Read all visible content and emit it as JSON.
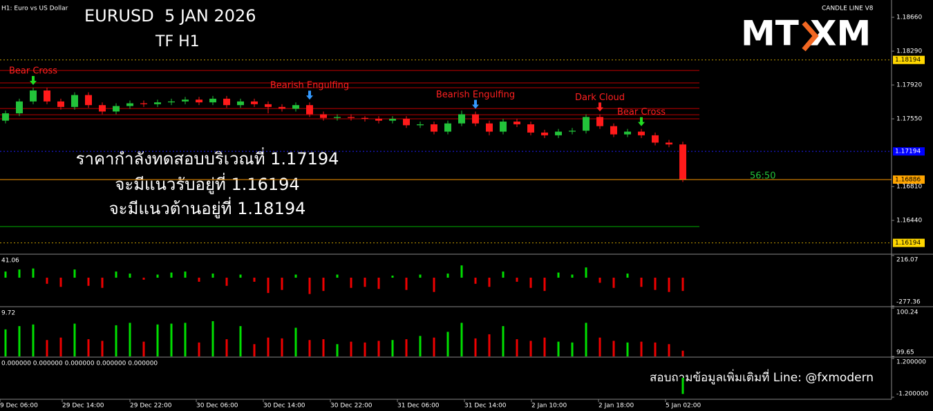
{
  "header": {
    "symbol": "H1: Euro vs US Dollar",
    "title": "EURUSD  5 JAN 2026",
    "timeframe": "TF H1",
    "indicator": "CANDLE LINE V8",
    "logo": [
      "MT",
      "XM"
    ],
    "notes": [
      "ราคากำลังทดสอบบริเวณที่ 1.17194",
      "จะมีแนวรับอยู่ที่ 1.16194",
      "จะมีแนวต้านอยู่ที่ 1.18194"
    ],
    "contact": "สอบถามข้อมูลเพิ่มเติมที่ Line: @fxmodern",
    "countdown": "56:50"
  },
  "chart_data": [
    {
      "type": "candlestick",
      "up_color": "#22c33a",
      "down_color": "#ff1a1a",
      "xlim": [
        -0.4,
        50.4
      ],
      "ylim": [
        1.16093,
        1.18849
      ],
      "open": [
        1.1753,
        1.1761,
        1.1774,
        1.1786,
        1.1774,
        1.1768,
        1.1781,
        1.177,
        1.1763,
        1.1769,
        1.1772,
        1.1771,
        1.1773,
        1.1774,
        1.1776,
        1.1773,
        1.1777,
        1.177,
        1.1774,
        1.1771,
        1.1768,
        1.1766,
        1.177,
        1.176,
        1.1756,
        1.1757,
        1.1756,
        1.1755,
        1.1753,
        1.1755,
        1.1748,
        1.1749,
        1.1741,
        1.175,
        1.176,
        1.175,
        1.1741,
        1.1752,
        1.1749,
        1.174,
        1.1737,
        1.1741,
        1.1742,
        1.1757,
        1.1747,
        1.1738,
        1.1741,
        1.1737,
        1.1729,
        1.1727
      ],
      "high": [
        1.1764,
        1.1777,
        1.1789,
        1.1789,
        1.1777,
        1.1784,
        1.1784,
        1.1773,
        1.1772,
        1.1775,
        1.1775,
        1.1776,
        1.1777,
        1.1779,
        1.1779,
        1.178,
        1.178,
        1.1777,
        1.1777,
        1.1774,
        1.1771,
        1.1773,
        1.1773,
        1.1763,
        1.176,
        1.176,
        1.1758,
        1.1758,
        1.1758,
        1.1758,
        1.1752,
        1.1752,
        1.1753,
        1.1764,
        1.1763,
        1.1753,
        1.1755,
        1.1755,
        1.1752,
        1.1743,
        1.1744,
        1.1745,
        1.176,
        1.176,
        1.175,
        1.1744,
        1.1744,
        1.174,
        1.1732,
        1.173
      ],
      "low": [
        1.175,
        1.1758,
        1.1771,
        1.1771,
        1.1765,
        1.1765,
        1.1767,
        1.176,
        1.176,
        1.1766,
        1.1768,
        1.1768,
        1.177,
        1.1771,
        1.177,
        1.177,
        1.1767,
        1.1767,
        1.1768,
        1.1761,
        1.1763,
        1.1763,
        1.1757,
        1.1753,
        1.1753,
        1.1753,
        1.1752,
        1.175,
        1.175,
        1.1745,
        1.1745,
        1.1738,
        1.1738,
        1.1747,
        1.1747,
        1.1737,
        1.1738,
        1.1746,
        1.1737,
        1.1734,
        1.1734,
        1.1738,
        1.1739,
        1.1744,
        1.1735,
        1.1735,
        1.1734,
        1.1726,
        1.1724,
        1.1686
      ],
      "close": [
        1.1761,
        1.1774,
        1.1786,
        1.1774,
        1.1768,
        1.1781,
        1.177,
        1.1763,
        1.1769,
        1.1772,
        1.1771,
        1.1773,
        1.1774,
        1.1776,
        1.1773,
        1.1777,
        1.177,
        1.1774,
        1.1771,
        1.1768,
        1.1766,
        1.177,
        1.176,
        1.1756,
        1.1757,
        1.1756,
        1.1755,
        1.1753,
        1.1755,
        1.1748,
        1.1749,
        1.1741,
        1.175,
        1.176,
        1.175,
        1.1741,
        1.1752,
        1.1749,
        1.174,
        1.1737,
        1.1741,
        1.1742,
        1.1757,
        1.1747,
        1.1738,
        1.1741,
        1.1737,
        1.1729,
        1.1727,
        1.1689
      ],
      "yticks": [
        {
          "value": 1.1866,
          "label": "1.18660"
        },
        {
          "value": 1.1829,
          "label": "1.18290"
        },
        {
          "value": 1.1792,
          "label": "1.17920"
        },
        {
          "value": 1.1755,
          "label": "1.17550"
        },
        {
          "value": 1.1681,
          "label": "1.16810"
        },
        {
          "value": 1.1644,
          "label": "1.16440"
        }
      ],
      "xticks": [
        {
          "value": -0.4,
          "label": "9 Dec 06:00"
        },
        {
          "value": 4.1,
          "label": "29 Dec 14:00"
        },
        {
          "value": 9,
          "label": "29 Dec 22:00"
        },
        {
          "value": 13.8,
          "label": "30 Dec 06:00"
        },
        {
          "value": 18.65,
          "label": "30 Dec 14:00"
        },
        {
          "value": 23.5,
          "label": "30 Dec 22:00"
        },
        {
          "value": 28.35,
          "label": "31 Dec 06:00"
        },
        {
          "value": 33.2,
          "label": "31 Dec 14:00"
        },
        {
          "value": 38.05,
          "label": "2 Jan 10:00"
        },
        {
          "value": 42.9,
          "label": "2 Jan 18:00"
        },
        {
          "value": 47.75,
          "label": "5 Jan 02:00"
        }
      ],
      "levels": [
        {
          "value": 1.18194,
          "color": "#c8a000",
          "dash": true,
          "tag": "#ffd700"
        },
        {
          "value": 1.18079,
          "color": "#c00000"
        },
        {
          "value": 1.17943,
          "color": "#c00000"
        },
        {
          "value": 1.1789,
          "color": "#c00000"
        },
        {
          "value": 1.17663,
          "color": "#c00000"
        },
        {
          "value": 1.17595,
          "color": "#c00000"
        },
        {
          "value": 1.1755,
          "color": "#c00000"
        },
        {
          "value": 1.17194,
          "color": "#2020ff",
          "dash": true,
          "tag": "#0000ff"
        },
        {
          "value": 1.16886,
          "color": "#ff9900",
          "tag": "#ffa500"
        },
        {
          "value": 1.16372,
          "color": "#00b000"
        },
        {
          "value": 1.16194,
          "color": "#c8a000",
          "dash": true,
          "tag": "#ffd700"
        }
      ],
      "annotations": [
        {
          "text": "Bear Cross",
          "x": 2,
          "color": "#ff2020",
          "arrow": "#22dd22"
        },
        {
          "text": "Bearish Engulfing",
          "x": 22,
          "color": "#ff2020",
          "arrow": "#3399ff"
        },
        {
          "text": "Bearish Engulfing",
          "x": 34,
          "color": "#ff2020",
          "arrow": "#3399ff"
        },
        {
          "text": "Dark Cloud",
          "x": 43,
          "color": "#ff2020",
          "arrow": "#ff2020"
        },
        {
          "text": "Bear Cross",
          "x": 46,
          "color": "#ff2020",
          "arrow": "#22dd22"
        }
      ]
    },
    {
      "type": "bar",
      "readout": 41.06,
      "ylim": [
        -277.36,
        216.07
      ],
      "yticks": [
        216.07,
        -277.36
      ],
      "up_color": "#00e000",
      "down_color": "#ee0000",
      "values": [
        60,
        80,
        90,
        -60,
        -90,
        80,
        -80,
        -100,
        60,
        40,
        -20,
        30,
        50,
        60,
        -40,
        40,
        -80,
        30,
        -40,
        -150,
        -120,
        30,
        -160,
        -130,
        30,
        -100,
        -90,
        -110,
        20,
        -120,
        30,
        -140,
        40,
        120,
        -60,
        -90,
        60,
        -40,
        -100,
        -130,
        50,
        30,
        100,
        -50,
        -100,
        40,
        -90,
        -120,
        -140,
        -130
      ]
    },
    {
      "type": "bar",
      "readout": 9.72,
      "ylim": [
        99.65,
        100.24
      ],
      "yticks": [
        100.24,
        99.65
      ],
      "up_color": "#00e000",
      "down_color": "#ee0000",
      "values": [
        99.98,
        100.02,
        100.04,
        99.85,
        99.88,
        100.05,
        99.86,
        99.84,
        100.03,
        100.06,
        99.83,
        100.04,
        100.05,
        100.06,
        99.82,
        100.08,
        99.86,
        100.02,
        99.8,
        99.88,
        99.87,
        100.0,
        99.85,
        99.86,
        99.8,
        99.83,
        99.82,
        99.84,
        99.85,
        99.86,
        99.9,
        99.88,
        99.95,
        100.06,
        99.87,
        99.92,
        100.02,
        99.86,
        99.84,
        99.88,
        99.83,
        99.82,
        100.06,
        99.88,
        99.84,
        99.82,
        99.83,
        99.82,
        99.8,
        99.72
      ]
    },
    {
      "type": "signal",
      "readout": "0.000000 0.000000 0.000000 0.000000 0.000000",
      "ylim": [
        -1.2,
        1.2
      ],
      "yticks": [
        {
          "value": 1.2,
          "label": "1.200000"
        },
        {
          "value": -1.2,
          "label": "-1.200000"
        }
      ],
      "color": "#00e000",
      "x": [
        49
      ],
      "values": [
        -1.0
      ]
    }
  ]
}
